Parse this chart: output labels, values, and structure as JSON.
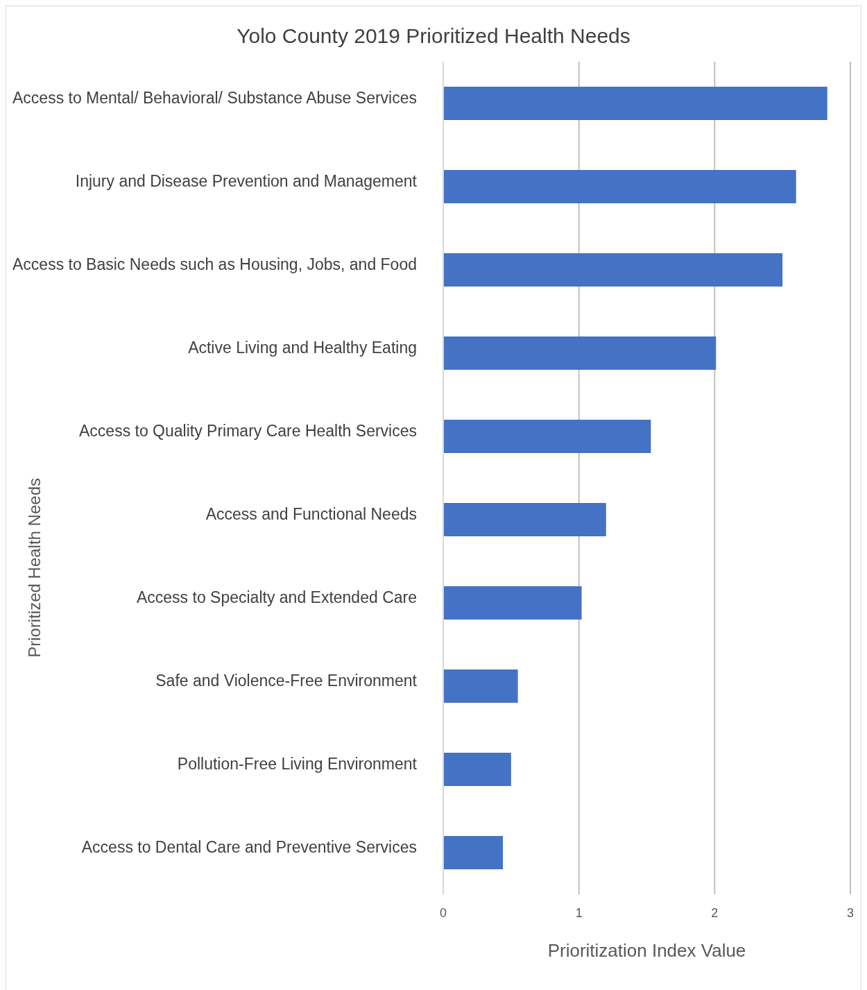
{
  "chart_data": {
    "type": "bar",
    "orientation": "horizontal",
    "title": "Yolo County 2019 Prioritized Health Needs",
    "xlabel": "Prioritization Index Value",
    "ylabel": "Prioritized Health Needs",
    "categories": [
      "Access to Mental/ Behavioral/ Substance Abuse Services",
      "Injury and Disease Prevention and Management",
      "Access to Basic Needs such as Housing, Jobs, and Food",
      "Active Living and Healthy Eating",
      "Access to Quality Primary Care Health Services",
      "Access and Functional Needs",
      "Access to Specialty and Extended Care",
      "Safe and Violence-Free Environment",
      "Pollution-Free Living Environment",
      "Access to Dental Care and Preventive Services"
    ],
    "values": [
      2.83,
      2.6,
      2.5,
      2.01,
      1.53,
      1.2,
      1.02,
      0.55,
      0.5,
      0.44
    ],
    "color": "#4472c4",
    "xlim": [
      0,
      3
    ],
    "xticks": [
      0,
      1,
      2,
      3
    ],
    "grid": "x",
    "legend": false
  }
}
